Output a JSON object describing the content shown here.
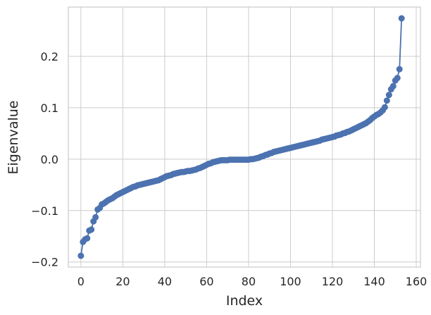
{
  "chart_data": {
    "type": "line",
    "title": "",
    "xlabel": "Index",
    "ylabel": "Eigenvalue",
    "xlim": [
      -6,
      162
    ],
    "ylim": [
      -0.21,
      0.296
    ],
    "x_ticks": [
      0,
      20,
      40,
      60,
      80,
      100,
      120,
      140,
      160
    ],
    "x_tick_labels": [
      "0",
      "20",
      "40",
      "60",
      "80",
      "100",
      "120",
      "140",
      "160"
    ],
    "y_ticks": [
      -0.2,
      -0.1,
      0.0,
      0.1,
      0.2
    ],
    "y_tick_labels": [
      "−0.2",
      "−0.1",
      "0.0",
      "0.1",
      "0.2"
    ],
    "grid": true,
    "markers": true,
    "color": "#4c72b0",
    "series": [
      {
        "values": [
          -0.188,
          -0.161,
          -0.156,
          -0.154,
          -0.139,
          -0.137,
          -0.121,
          -0.113,
          -0.098,
          -0.095,
          -0.088,
          -0.086,
          -0.083,
          -0.08,
          -0.078,
          -0.076,
          -0.073,
          -0.07,
          -0.068,
          -0.066,
          -0.064,
          -0.062,
          -0.06,
          -0.058,
          -0.056,
          -0.054,
          -0.053,
          -0.051,
          -0.05,
          -0.049,
          -0.048,
          -0.047,
          -0.046,
          -0.045,
          -0.044,
          -0.043,
          -0.042,
          -0.041,
          -0.039,
          -0.037,
          -0.035,
          -0.033,
          -0.032,
          -0.031,
          -0.029,
          -0.028,
          -0.027,
          -0.026,
          -0.025,
          -0.025,
          -0.024,
          -0.023,
          -0.023,
          -0.022,
          -0.021,
          -0.02,
          -0.018,
          -0.017,
          -0.015,
          -0.013,
          -0.011,
          -0.009,
          -0.008,
          -0.006,
          -0.005,
          -0.004,
          -0.003,
          -0.002,
          -0.002,
          -0.002,
          -0.002,
          -0.001,
          -0.001,
          -0.001,
          -0.001,
          -0.001,
          -0.001,
          -0.001,
          -0.001,
          -0.001,
          -0.001,
          0.0,
          0.0,
          0.001,
          0.002,
          0.003,
          0.005,
          0.006,
          0.008,
          0.009,
          0.011,
          0.012,
          0.014,
          0.015,
          0.016,
          0.017,
          0.018,
          0.019,
          0.02,
          0.021,
          0.022,
          0.023,
          0.024,
          0.025,
          0.026,
          0.027,
          0.028,
          0.029,
          0.03,
          0.031,
          0.032,
          0.033,
          0.034,
          0.035,
          0.036,
          0.038,
          0.039,
          0.04,
          0.041,
          0.042,
          0.043,
          0.044,
          0.046,
          0.047,
          0.048,
          0.05,
          0.051,
          0.053,
          0.054,
          0.056,
          0.058,
          0.06,
          0.062,
          0.064,
          0.066,
          0.068,
          0.07,
          0.073,
          0.076,
          0.08,
          0.083,
          0.086,
          0.088,
          0.091,
          0.095,
          0.101,
          0.114,
          0.125,
          0.136,
          0.142,
          0.153,
          0.158,
          0.175,
          0.274
        ]
      }
    ]
  }
}
